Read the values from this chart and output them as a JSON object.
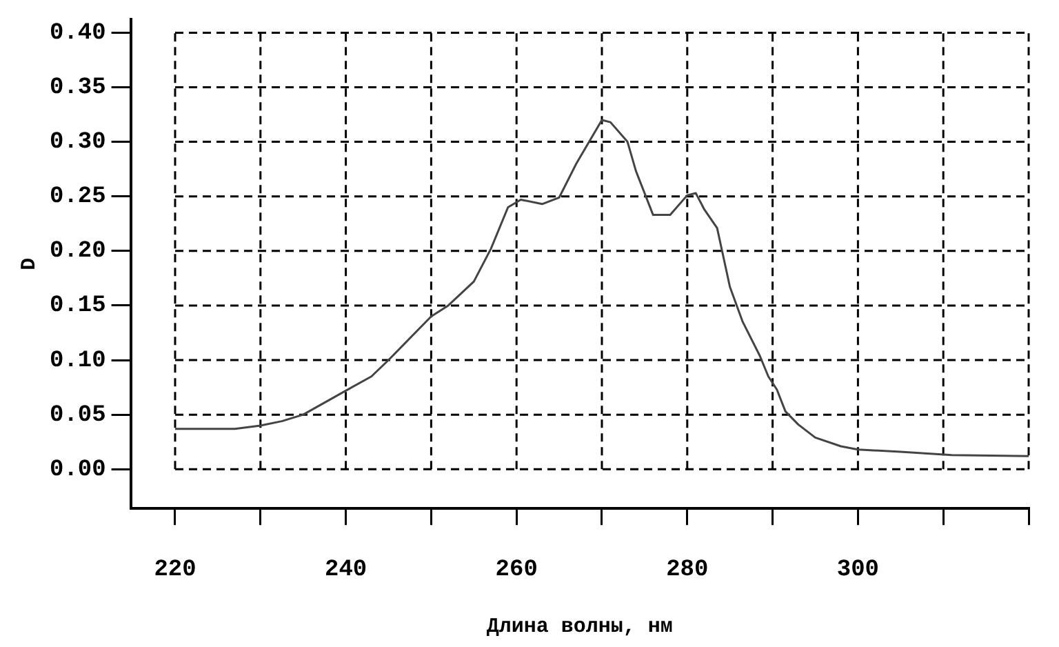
{
  "chart_data": {
    "type": "line",
    "xlabel": "Длина волны, нм",
    "ylabel": "D",
    "x": [
      220,
      227,
      230,
      232.5,
      235,
      240,
      243,
      245,
      250,
      252,
      255,
      257,
      259,
      260.5,
      263,
      265,
      267,
      270,
      271,
      273,
      274,
      276,
      278,
      280,
      281,
      282,
      283.5,
      285,
      286.5,
      288.5,
      289.5,
      290.5,
      291.5,
      293,
      295,
      298,
      300,
      305,
      311,
      320
    ],
    "series": [
      {
        "color": "#444444",
        "values": [
          0.037,
          0.037,
          0.04,
          0.044,
          0.05,
          0.072,
          0.085,
          0.1,
          0.14,
          0.15,
          0.172,
          0.202,
          0.24,
          0.247,
          0.243,
          0.249,
          0.28,
          0.32,
          0.318,
          0.3,
          0.273,
          0.233,
          0.233,
          0.251,
          0.253,
          0.238,
          0.221,
          0.167,
          0.135,
          0.104,
          0.085,
          0.073,
          0.053,
          0.041,
          0.029,
          0.021,
          0.018,
          0.016,
          0.013,
          0.012
        ]
      }
    ],
    "xlim": [
      214.8,
      320
    ],
    "ylim": [
      -0.036,
      0.412
    ],
    "xticks": [
      {
        "value": 220,
        "label": "220"
      },
      {
        "value": 230,
        "label": null
      },
      {
        "value": 240,
        "label": "240"
      },
      {
        "value": 250,
        "label": null
      },
      {
        "value": 260,
        "label": "260"
      },
      {
        "value": 270,
        "label": null
      },
      {
        "value": 280,
        "label": "280"
      },
      {
        "value": 290,
        "label": null
      },
      {
        "value": 300,
        "label": "300"
      },
      {
        "value": 310,
        "label": null
      },
      {
        "value": 320,
        "label": null
      }
    ],
    "yticks": [
      {
        "value": 0,
        "label": "0.00"
      },
      {
        "value": 0.05,
        "label": "0.05"
      },
      {
        "value": 0.1,
        "label": "0.10"
      },
      {
        "value": 0.15,
        "label": "0.15"
      },
      {
        "value": 0.2,
        "label": "0.20"
      },
      {
        "value": 0.25,
        "label": "0.25"
      },
      {
        "value": 0.3,
        "label": "0.30"
      },
      {
        "value": 0.35,
        "label": "0.35"
      },
      {
        "value": 0.4,
        "label": "0.40"
      }
    ],
    "grid": true,
    "legend": false,
    "marker": "none",
    "line_style": "solid"
  }
}
